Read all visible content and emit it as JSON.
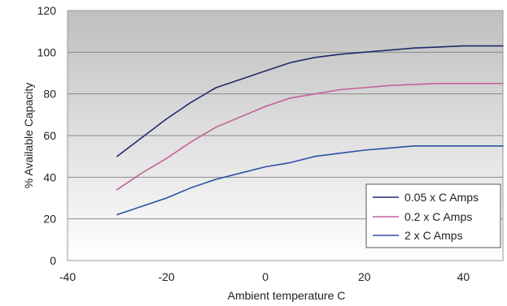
{
  "chart_data": {
    "type": "line",
    "title": "",
    "xlabel": "Ambient temperature  C",
    "ylabel": "% Available Capacity",
    "xlim": [
      -40,
      48
    ],
    "ylim": [
      0,
      120
    ],
    "x_ticks": [
      -40,
      -20,
      0,
      20,
      40
    ],
    "y_ticks": [
      0,
      20,
      40,
      60,
      80,
      100,
      120
    ],
    "grid": true,
    "legend_position": "bottom-right",
    "series": [
      {
        "name": "0.05 x C Amps",
        "color": "#1f2a6e",
        "x": [
          -30,
          -25,
          -20,
          -15,
          -10,
          -5,
          0,
          5,
          10,
          15,
          20,
          25,
          30,
          35,
          40,
          48
        ],
        "y": [
          50,
          59,
          68,
          76,
          83,
          87,
          91,
          95,
          97.5,
          99,
          100,
          101,
          102,
          102.5,
          103,
          103
        ]
      },
      {
        "name": "0.2 x C Amps",
        "color": "#c5619b",
        "x": [
          -30,
          -25,
          -20,
          -15,
          -10,
          -5,
          0,
          5,
          10,
          15,
          20,
          25,
          30,
          35,
          40,
          48
        ],
        "y": [
          34,
          42,
          49,
          57,
          64,
          69,
          74,
          78,
          80,
          82,
          83,
          84,
          84.5,
          85,
          85,
          85
        ]
      },
      {
        "name": "2 x C Amps",
        "color": "#2e4fa6",
        "x": [
          -30,
          -25,
          -20,
          -15,
          -10,
          -5,
          0,
          5,
          10,
          15,
          20,
          25,
          30,
          35,
          40,
          48
        ],
        "y": [
          22,
          26,
          30,
          35,
          39,
          42,
          45,
          47,
          50,
          51.5,
          53,
          54,
          55,
          55,
          55,
          55
        ]
      }
    ]
  }
}
